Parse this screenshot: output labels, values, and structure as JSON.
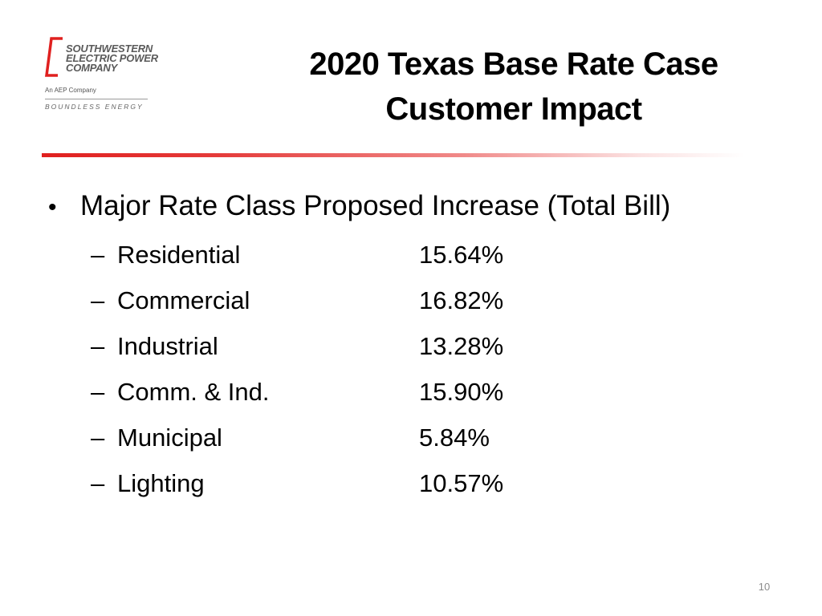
{
  "logo": {
    "company_lines": [
      "SOUTHWESTERN",
      "ELECTRIC POWER",
      "COMPANY"
    ],
    "affiliation": "An AEP Company",
    "tagline": "BOUNDLESS ENERGY",
    "accent_color": "#e0201f"
  },
  "title": {
    "line1": "2020 Texas Base Rate Case",
    "line2": "Customer Impact"
  },
  "content": {
    "bullet_symbol": "•",
    "heading": "Major Rate Class Proposed Increase (Total Bill)",
    "dash_symbol": "–",
    "rows": [
      {
        "label": "Residential",
        "value": "15.64%"
      },
      {
        "label": "Commercial",
        "value": "16.82%"
      },
      {
        "label": "Industrial",
        "value": "13.28%"
      },
      {
        "label": "Comm. & Ind.",
        "value": "15.90%"
      },
      {
        "label": "Municipal",
        "value": "5.84%"
      },
      {
        "label": "Lighting",
        "value": "10.57%"
      }
    ]
  },
  "footer": {
    "page_number": "10"
  },
  "colors": {
    "divider_start": "#e0201f",
    "text": "#000000",
    "page_number": "#8c8c8c"
  }
}
